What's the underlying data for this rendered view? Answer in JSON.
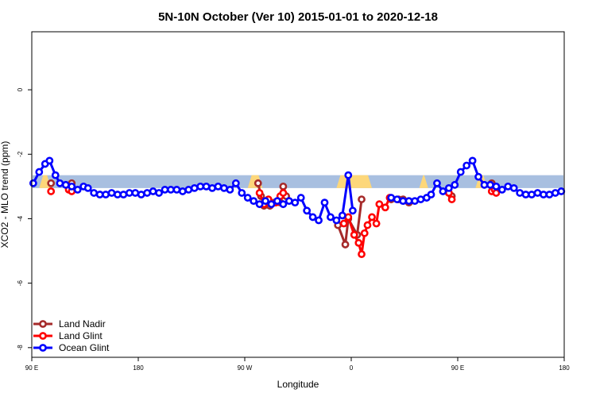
{
  "chart_data": {
    "type": "line",
    "title": "5N-10N October (Ver 10)   2015-01-01 to 2020-12-18",
    "xlabel": "Longitude",
    "ylabel": "XCO2 - MLO trend (ppm)",
    "xlim": [
      -90,
      270
    ],
    "ylim": [
      -8.3,
      1.8
    ],
    "x_ticks": [
      {
        "value": -90,
        "label": "90 E"
      },
      {
        "value": -18,
        "label": "180"
      },
      {
        "value": 54,
        "label": "90 W"
      },
      {
        "value": 126,
        "label": "0"
      },
      {
        "value": 198,
        "label": "90 E"
      },
      {
        "value": 270,
        "label": "180"
      }
    ],
    "y_ticks": [
      {
        "value": 0,
        "label": "0"
      },
      {
        "value": -2,
        "label": "-2"
      },
      {
        "value": -4,
        "label": "-4"
      },
      {
        "value": -6,
        "label": "-6"
      },
      {
        "value": -8,
        "label": "-8"
      }
    ],
    "background_band": {
      "y_range": [
        -3.05,
        -2.65
      ],
      "color": "#a8bfe0",
      "highlight_color": "#fdd77a",
      "highlight_x_ranges": [
        [
          -85,
          -77
        ],
        [
          56,
          66
        ],
        [
          116,
          140
        ],
        [
          172,
          178
        ],
        [
          210,
          218
        ]
      ]
    },
    "legend": {
      "position": "bottom-left",
      "entries": [
        {
          "label": "Land Nadir",
          "color": "#a52a2a"
        },
        {
          "label": "Land Glint",
          "color": "#ff0000"
        },
        {
          "label": "Ocean Glint",
          "color": "#0000ff"
        }
      ]
    },
    "series": [
      {
        "name": "Land Nadir",
        "color": "#a52a2a",
        "points": [
          [
            -77,
            -2.9
          ],
          [
            -63,
            -2.9
          ],
          [
            63,
            -2.9
          ],
          [
            65,
            -3.3
          ],
          [
            67,
            -3.6
          ],
          [
            71,
            -3.6
          ],
          [
            74,
            -3.5
          ],
          [
            78,
            -3.5
          ],
          [
            80,
            -3.0
          ],
          [
            82,
            -3.3
          ],
          [
            117,
            -4.2
          ],
          [
            122,
            -4.8
          ],
          [
            124,
            -4.0
          ],
          [
            130,
            -4.5
          ],
          [
            133,
            -3.4
          ],
          [
            153,
            -3.4
          ],
          [
            158,
            -3.4
          ],
          [
            161,
            -3.4
          ],
          [
            165,
            -3.5
          ],
          [
            192,
            -3.2
          ],
          [
            194,
            -3.3
          ],
          [
            221,
            -2.9
          ]
        ],
        "segments": [
          [
            0,
            0
          ],
          [
            1,
            1
          ],
          [
            2,
            9
          ],
          [
            10,
            14
          ],
          [
            15,
            18
          ],
          [
            19,
            20
          ],
          [
            21,
            21
          ]
        ]
      },
      {
        "name": "Land Glint",
        "color": "#ff0000",
        "points": [
          [
            -77,
            -3.15
          ],
          [
            -65,
            -3.1
          ],
          [
            -63,
            -3.15
          ],
          [
            64,
            -3.2
          ],
          [
            67,
            -3.55
          ],
          [
            70,
            -3.4
          ],
          [
            72,
            -3.55
          ],
          [
            75,
            -3.5
          ],
          [
            78,
            -3.3
          ],
          [
            80,
            -3.2
          ],
          [
            121,
            -4.15
          ],
          [
            124,
            -3.95
          ],
          [
            128,
            -4.5
          ],
          [
            131,
            -4.75
          ],
          [
            133,
            -5.1
          ],
          [
            135,
            -4.45
          ],
          [
            137,
            -4.2
          ],
          [
            140,
            -3.95
          ],
          [
            143,
            -4.15
          ],
          [
            145,
            -3.55
          ],
          [
            149,
            -3.65
          ],
          [
            152,
            -3.35
          ],
          [
            192,
            -3.2
          ],
          [
            194,
            -3.4
          ],
          [
            221,
            -3.15
          ],
          [
            223,
            -3.1
          ],
          [
            224,
            -3.2
          ]
        ],
        "segments": [
          [
            0,
            0
          ],
          [
            1,
            2
          ],
          [
            3,
            9
          ],
          [
            10,
            21
          ],
          [
            22,
            23
          ],
          [
            24,
            26
          ]
        ]
      },
      {
        "name": "Ocean Glint",
        "color": "#0000ff",
        "points": [
          [
            -89,
            -2.9
          ],
          [
            -85,
            -2.55
          ],
          [
            -81,
            -2.3
          ],
          [
            -78,
            -2.2
          ],
          [
            -74,
            -2.65
          ],
          [
            -71,
            -2.9
          ],
          [
            -67,
            -2.95
          ],
          [
            -63,
            -3.0
          ],
          [
            -59,
            -3.1
          ],
          [
            -55,
            -3.0
          ],
          [
            -52,
            -3.05
          ],
          [
            -48,
            -3.2
          ],
          [
            -44,
            -3.25
          ],
          [
            -40,
            -3.25
          ],
          [
            -36,
            -3.2
          ],
          [
            -32,
            -3.25
          ],
          [
            -28,
            -3.25
          ],
          [
            -24,
            -3.2
          ],
          [
            -20,
            -3.2
          ],
          [
            -16,
            -3.25
          ],
          [
            -12,
            -3.2
          ],
          [
            -8,
            -3.15
          ],
          [
            -4,
            -3.2
          ],
          [
            0,
            -3.1
          ],
          [
            4,
            -3.1
          ],
          [
            8,
            -3.1
          ],
          [
            12,
            -3.15
          ],
          [
            16,
            -3.1
          ],
          [
            20,
            -3.05
          ],
          [
            24,
            -3.0
          ],
          [
            28,
            -3.0
          ],
          [
            32,
            -3.05
          ],
          [
            36,
            -3.0
          ],
          [
            40,
            -3.05
          ],
          [
            44,
            -3.1
          ],
          [
            48,
            -2.9
          ],
          [
            52,
            -3.2
          ],
          [
            56,
            -3.35
          ],
          [
            60,
            -3.45
          ],
          [
            64,
            -3.55
          ],
          [
            68,
            -3.45
          ],
          [
            72,
            -3.55
          ],
          [
            76,
            -3.45
          ],
          [
            80,
            -3.55
          ],
          [
            84,
            -3.45
          ],
          [
            88,
            -3.5
          ],
          [
            92,
            -3.35
          ],
          [
            96,
            -3.75
          ],
          [
            100,
            -3.95
          ],
          [
            104,
            -4.05
          ],
          [
            108,
            -3.5
          ],
          [
            112,
            -3.95
          ],
          [
            116,
            -4.05
          ],
          [
            120,
            -3.9
          ],
          [
            124,
            -2.65
          ],
          [
            127,
            -3.75
          ],
          [
            153,
            -3.35
          ],
          [
            157,
            -3.4
          ],
          [
            161,
            -3.45
          ],
          [
            165,
            -3.45
          ],
          [
            169,
            -3.45
          ],
          [
            173,
            -3.4
          ],
          [
            177,
            -3.35
          ],
          [
            180,
            -3.25
          ],
          [
            184,
            -2.9
          ],
          [
            188,
            -3.15
          ],
          [
            192,
            -3.05
          ],
          [
            196,
            -2.95
          ],
          [
            200,
            -2.55
          ],
          [
            204,
            -2.35
          ],
          [
            208,
            -2.2
          ],
          [
            212,
            -2.7
          ],
          [
            216,
            -2.95
          ],
          [
            220,
            -2.95
          ],
          [
            224,
            -3.0
          ],
          [
            228,
            -3.1
          ],
          [
            232,
            -3.0
          ],
          [
            236,
            -3.05
          ],
          [
            240,
            -3.2
          ],
          [
            244,
            -3.25
          ],
          [
            248,
            -3.25
          ],
          [
            252,
            -3.2
          ],
          [
            256,
            -3.25
          ],
          [
            260,
            -3.25
          ],
          [
            264,
            -3.2
          ],
          [
            268,
            -3.15
          ]
        ],
        "segments": [
          [
            0,
            55
          ],
          [
            56,
            85
          ]
        ]
      }
    ]
  }
}
